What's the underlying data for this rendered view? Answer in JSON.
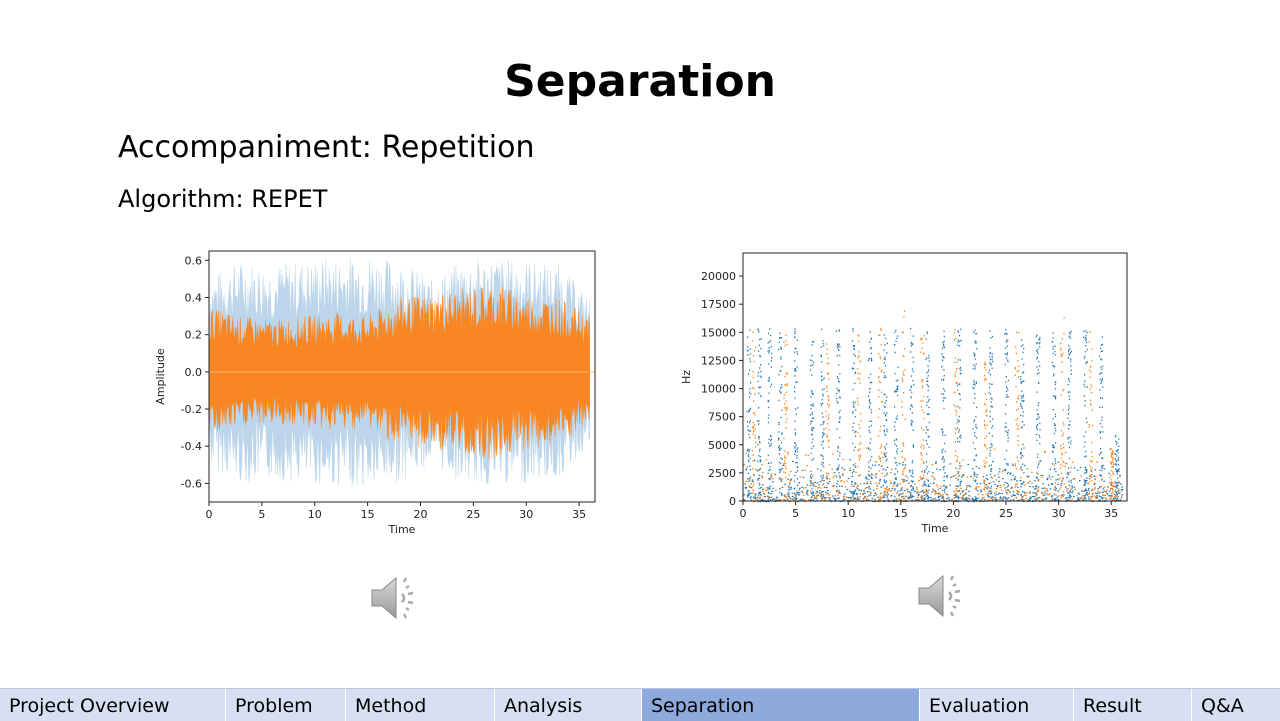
{
  "slide": {
    "title": "Separation",
    "subtitle": "Accompaniment: Repetition",
    "algorithm": "Algorithm: REPET"
  },
  "nav": {
    "items": [
      {
        "label": "Project Overview",
        "active": false
      },
      {
        "label": "Problem",
        "active": false
      },
      {
        "label": "Method",
        "active": false
      },
      {
        "label": "Analysis",
        "active": false
      },
      {
        "label": "Separation",
        "active": true
      },
      {
        "label": "Evaluation",
        "active": false
      },
      {
        "label": "Result",
        "active": false
      },
      {
        "label": "Q&A",
        "active": false
      }
    ]
  },
  "icons": {
    "speaker_1": "speaker-icon",
    "speaker_2": "speaker-icon"
  },
  "colors": {
    "series_orange": "#ff7f0e",
    "series_blue": "#1f77b4",
    "series_lightblue": "#a6c8e4",
    "nav_bg": "#d7e0f2",
    "nav_active": "#8ea9db"
  },
  "chart_data": [
    {
      "type": "area",
      "xlabel": "Time",
      "ylabel": "Amplitude",
      "xlim": [
        0,
        36.5
      ],
      "ylim": [
        -0.7,
        0.65
      ],
      "xticks": [
        0,
        5,
        10,
        15,
        20,
        25,
        30,
        35
      ],
      "yticks": [
        -0.6,
        -0.4,
        -0.2,
        0.0,
        0.2,
        0.4,
        0.6
      ],
      "series": [
        {
          "color": "#a6c8e4",
          "x": [
            0,
            3,
            6,
            9,
            12,
            15,
            18,
            21,
            24,
            27,
            30,
            33,
            36
          ],
          "upper": [
            0.52,
            0.6,
            0.58,
            0.6,
            0.62,
            0.63,
            0.6,
            0.5,
            0.6,
            0.62,
            0.6,
            0.58,
            0.4
          ],
          "lower": [
            -0.5,
            -0.6,
            -0.58,
            -0.6,
            -0.62,
            -0.63,
            -0.6,
            -0.5,
            -0.6,
            -0.62,
            -0.6,
            -0.58,
            -0.4
          ]
        },
        {
          "color": "#ff7f0e",
          "x": [
            0,
            3,
            6,
            9,
            12,
            15,
            18,
            21,
            24,
            27,
            30,
            33,
            36
          ],
          "upper": [
            0.35,
            0.3,
            0.28,
            0.3,
            0.32,
            0.3,
            0.4,
            0.42,
            0.45,
            0.48,
            0.42,
            0.4,
            0.3
          ],
          "lower": [
            -0.35,
            -0.3,
            -0.28,
            -0.3,
            -0.32,
            -0.3,
            -0.4,
            -0.42,
            -0.45,
            -0.48,
            -0.42,
            -0.4,
            -0.3
          ]
        }
      ]
    },
    {
      "type": "scatter",
      "xlabel": "Time",
      "ylabel": "Hz",
      "xlim": [
        0,
        36.5
      ],
      "ylim": [
        0,
        22050
      ],
      "xticks": [
        0,
        5,
        10,
        15,
        20,
        25,
        30,
        35
      ],
      "yticks": [
        0,
        2500,
        5000,
        7500,
        10000,
        12500,
        15000,
        17500,
        20000
      ],
      "series": [
        {
          "color": "#1f77b4",
          "x": [
            0.5,
            1.5,
            2.5,
            3.5,
            5,
            6.5,
            7.5,
            9,
            10.5,
            12,
            13.5,
            14.5,
            16,
            17.5,
            19,
            20.5,
            22,
            23.5,
            25,
            26.5,
            28,
            29.5,
            31,
            32.5,
            34,
            35.5
          ],
          "y": [
            15400,
            15400,
            15400,
            15400,
            15400,
            15400,
            15400,
            15400,
            15400,
            15400,
            15400,
            15400,
            15400,
            15400,
            15400,
            15400,
            15400,
            15400,
            15400,
            15400,
            15400,
            15400,
            15400,
            15400,
            15400,
            6000
          ]
        },
        {
          "color": "#ff7f0e",
          "x": [
            1,
            4,
            8,
            11,
            13,
            15.2,
            17,
            20.2,
            23,
            26,
            30.3,
            33,
            35
          ],
          "y": [
            15400,
            15400,
            15000,
            15400,
            15400,
            17000,
            15400,
            15400,
            13000,
            15400,
            17200,
            15400,
            5000
          ]
        }
      ]
    }
  ]
}
